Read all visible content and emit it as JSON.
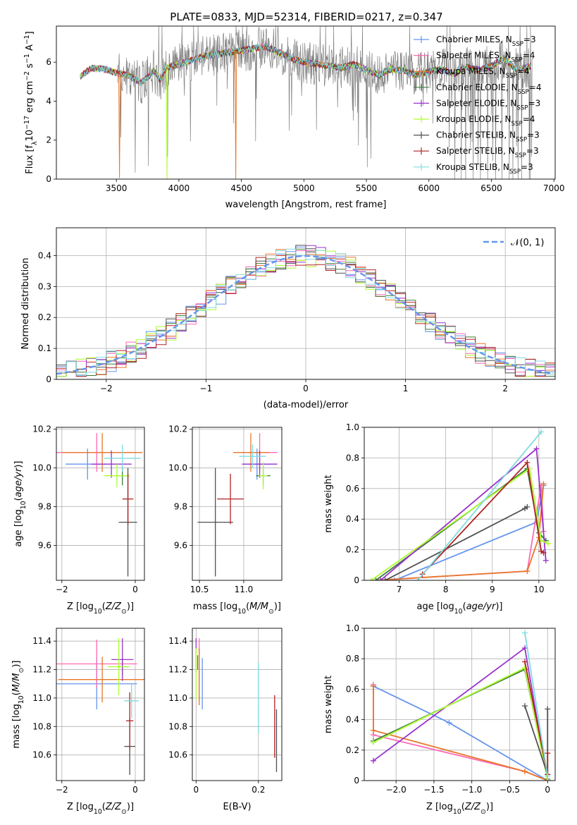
{
  "figure_title": "PLATE=0833, MJD=52314, FIBERID=0217, z=0.347",
  "colors": {
    "axes": "#000000",
    "grid": "#b0b0b0",
    "spectrum_data": "#808080",
    "normal_curve": "#6495ED"
  },
  "models": [
    {
      "name": "Chabrier MILES",
      "nssp": "3",
      "color": "#6495ED"
    },
    {
      "name": "Salpeter MILES",
      "nssp": "4",
      "color": "#FF69B4"
    },
    {
      "name": "Kroupa MILES",
      "nssp": "4",
      "color": "#E8772A"
    },
    {
      "name": "Chabrier ELODIE",
      "nssp": "4",
      "color": "#3C7A3C"
    },
    {
      "name": "Salpeter ELODIE",
      "nssp": "3",
      "color": "#9932CC"
    },
    {
      "name": "Kroupa ELODIE",
      "nssp": "4",
      "color": "#ADFF2F"
    },
    {
      "name": "Chabrier STELIB",
      "nssp": "3",
      "color": "#505050"
    },
    {
      "name": "Salpeter STELIB",
      "nssp": "3",
      "color": "#B22222"
    },
    {
      "name": "Kroupa STELIB",
      "nssp": "3",
      "color": "#7FDBE0"
    }
  ],
  "chart_data": [
    {
      "id": "spectrum",
      "type": "line",
      "xlabel": "wavelength [Angstrom, rest frame]",
      "ylabel": "Flux [f",
      "ylabel_unit": "10",
      "xlim": [
        3020,
        7010
      ],
      "ylim": [
        0,
        7.85
      ],
      "xticks": [
        3500,
        4000,
        4500,
        5000,
        5500,
        6000,
        6500,
        7000
      ],
      "yticks": [
        0,
        2,
        4,
        6
      ],
      "grid": false,
      "legend_position": "top-right",
      "x_range_model": [
        3210,
        6820
      ],
      "x_range_data": [
        3510,
        6830
      ],
      "flux_anchors": [
        [
          3210,
          5.25
        ],
        [
          3300,
          5.7
        ],
        [
          3400,
          5.65
        ],
        [
          3500,
          5.45
        ],
        [
          3600,
          5.3
        ],
        [
          3700,
          4.95
        ],
        [
          3800,
          5.55
        ],
        [
          3850,
          5.1
        ],
        [
          3900,
          5.7
        ],
        [
          4000,
          5.9
        ],
        [
          4200,
          6.3
        ],
        [
          4400,
          6.5
        ],
        [
          4500,
          6.6
        ],
        [
          4700,
          6.8
        ],
        [
          4800,
          6.5
        ],
        [
          4900,
          6.2
        ],
        [
          5000,
          6.0
        ],
        [
          5200,
          5.8
        ],
        [
          5300,
          5.7
        ],
        [
          5400,
          5.9
        ],
        [
          5500,
          5.6
        ],
        [
          5600,
          5.35
        ],
        [
          5700,
          5.65
        ],
        [
          5800,
          5.55
        ],
        [
          5900,
          5.35
        ],
        [
          6000,
          5.5
        ],
        [
          6100,
          5.65
        ],
        [
          6200,
          5.4
        ],
        [
          6300,
          5.75
        ],
        [
          6400,
          5.6
        ],
        [
          6500,
          5.8
        ],
        [
          6600,
          6.2
        ],
        [
          6700,
          5.6
        ],
        [
          6820,
          5.8
        ]
      ],
      "model_dropouts": [
        {
          "x": 3525,
          "y": 0.05,
          "color": "#E8772A"
        },
        {
          "x": 3905,
          "y": 0.0,
          "color": "#ADFF2F"
        },
        {
          "x": 4455,
          "y": 0.0,
          "color": "#E8772A"
        }
      ]
    },
    {
      "id": "residual_histogram",
      "type": "line",
      "xlabel": "(data-model)/error",
      "ylabel": "Normed distribution",
      "xlim": [
        -2.5,
        2.5
      ],
      "ylim": [
        0,
        0.49
      ],
      "xticks": [
        -2,
        -1,
        0,
        1,
        2
      ],
      "yticks": [
        0,
        0.1,
        0.2,
        0.3,
        0.4
      ],
      "grid": true,
      "bin_width": 0.1,
      "legend": "𝒩(0, 1)",
      "legend_position": "top-right"
    },
    {
      "id": "age_vs_Z",
      "type": "scatter",
      "xlabel": "Z [log",
      "ylabel": "age  [log",
      "xlim": [
        -2.15,
        0.25
      ],
      "ylim": [
        9.42,
        10.21
      ],
      "xticks": [
        -2,
        0
      ],
      "yticks": [
        9.6,
        9.8,
        10.0,
        10.2
      ],
      "points": [
        {
          "model": 0,
          "x": -1.3,
          "xerr": 0.6,
          "y": 10.02,
          "yerr": 0.08
        },
        {
          "model": 1,
          "x": -1.05,
          "xerr": 1.1,
          "y": 10.08,
          "yerr": 0.1
        },
        {
          "model": 2,
          "x": -0.9,
          "xerr": 1.1,
          "y": 10.08,
          "yerr": 0.1
        },
        {
          "model": 3,
          "x": -0.35,
          "xerr": 0.12,
          "y": 9.96,
          "yerr": 0.05
        },
        {
          "model": 4,
          "x": -0.65,
          "xerr": 0.55,
          "y": 10.02,
          "yerr": 0.07
        },
        {
          "model": 5,
          "x": -0.5,
          "xerr": 0.35,
          "y": 9.96,
          "yerr": 0.06
        },
        {
          "model": 6,
          "x": -0.2,
          "xerr": 0.25,
          "y": 9.72,
          "yerr": 0.28
        },
        {
          "model": 7,
          "x": -0.2,
          "xerr": 0.15,
          "y": 9.84,
          "yerr": 0.13
        },
        {
          "model": 8,
          "x": -0.35,
          "xerr": 0.5,
          "y": 10.05,
          "yerr": 0.07
        }
      ]
    },
    {
      "id": "age_vs_mass",
      "type": "scatter",
      "xlabel": "mass [log",
      "ylabel": "",
      "xlim": [
        10.42,
        11.43
      ],
      "ylim": [
        9.42,
        10.21
      ],
      "xticks": [
        10.5,
        11.0
      ],
      "yticks": [
        9.6,
        9.8,
        10.0,
        10.2
      ],
      "points": [
        {
          "model": 0,
          "x": 11.15,
          "xerr": 0.15,
          "y": 10.02,
          "yerr": 0.08
        },
        {
          "model": 1,
          "x": 11.18,
          "xerr": 0.2,
          "y": 10.08,
          "yerr": 0.1
        },
        {
          "model": 2,
          "x": 11.08,
          "xerr": 0.2,
          "y": 10.08,
          "yerr": 0.1
        },
        {
          "model": 3,
          "x": 11.22,
          "xerr": 0.08,
          "y": 9.96,
          "yerr": 0.05
        },
        {
          "model": 4,
          "x": 11.18,
          "xerr": 0.2,
          "y": 10.02,
          "yerr": 0.07
        },
        {
          "model": 5,
          "x": 11.22,
          "xerr": 0.05,
          "y": 9.96,
          "yerr": 0.07
        },
        {
          "model": 6,
          "x": 10.68,
          "xerr": 0.2,
          "y": 9.72,
          "yerr": 0.28
        },
        {
          "model": 7,
          "x": 10.85,
          "xerr": 0.15,
          "y": 9.84,
          "yerr": 0.13
        },
        {
          "model": 8,
          "x": 11.1,
          "xerr": 0.15,
          "y": 10.06,
          "yerr": 0.06
        }
      ]
    },
    {
      "id": "mass_weight_vs_age",
      "type": "line",
      "xlabel": "age  [log",
      "ylabel": "mass weight",
      "xlim": [
        6.25,
        10.35
      ],
      "ylim": [
        0,
        1.0
      ],
      "xticks": [
        7,
        8,
        9,
        10
      ],
      "yticks": [
        0.0,
        0.2,
        0.4,
        0.6,
        0.8,
        1.0
      ],
      "grid": true,
      "series": [
        {
          "model": 0,
          "x": [
            6.9,
            9.95,
            10.1
          ],
          "y": [
            0.0,
            0.38,
            0.62
          ]
        },
        {
          "model": 1,
          "x": [
            6.5,
            9.75,
            10.05,
            10.1
          ],
          "y": [
            0.0,
            0.06,
            0.62,
            0.32
          ]
        },
        {
          "model": 2,
          "x": [
            6.5,
            9.75,
            10.0,
            10.1
          ],
          "y": [
            0.0,
            0.06,
            0.28,
            0.63
          ]
        },
        {
          "model": 3,
          "x": [
            6.5,
            9.75,
            10.0,
            10.15
          ],
          "y": [
            0.0,
            0.73,
            0.31,
            0.26
          ]
        },
        {
          "model": 4,
          "x": [
            6.6,
            9.95,
            10.15
          ],
          "y": [
            0.0,
            0.86,
            0.13
          ]
        },
        {
          "model": 5,
          "x": [
            6.4,
            9.8,
            10.05,
            10.2
          ],
          "y": [
            0.0,
            0.73,
            0.26,
            0.24
          ]
        },
        {
          "model": 6,
          "x": [
            6.7,
            9.7,
            9.75
          ],
          "y": [
            0.0,
            0.47,
            0.48
          ]
        },
        {
          "model": 7,
          "x": [
            7.5,
            9.75,
            10.05,
            10.1
          ],
          "y": [
            0.04,
            0.77,
            0.19,
            0.18
          ]
        },
        {
          "model": 8,
          "x": [
            7.4,
            10.05
          ],
          "y": [
            0.0,
            0.97
          ]
        }
      ]
    },
    {
      "id": "mass_vs_Z",
      "type": "scatter",
      "xlabel": "Z [log",
      "ylabel": "mass [log",
      "xlim": [
        -2.15,
        0.25
      ],
      "ylim": [
        10.42,
        11.49
      ],
      "xticks": [
        -2,
        0
      ],
      "yticks": [
        10.6,
        10.8,
        11.0,
        11.2,
        11.4
      ],
      "points": [
        {
          "model": 0,
          "x": -1.05,
          "xerr": 1.1,
          "y": 11.1,
          "yerr": 0.18
        },
        {
          "model": 1,
          "x": -1.05,
          "xerr": 1.1,
          "y": 11.24,
          "yerr": 0.17
        },
        {
          "model": 2,
          "x": -0.9,
          "xerr": 1.2,
          "y": 11.13,
          "yerr": 0.16
        },
        {
          "model": 3,
          "x": -0.35,
          "xerr": 0.15,
          "y": 11.22,
          "yerr": 0.06
        },
        {
          "model": 4,
          "x": -0.35,
          "xerr": 0.3,
          "y": 11.27,
          "yerr": 0.15
        },
        {
          "model": 5,
          "x": -0.45,
          "xerr": 0.3,
          "y": 11.22,
          "yerr": 0.2
        },
        {
          "model": 6,
          "x": -0.15,
          "xerr": 0.15,
          "y": 10.66,
          "yerr": 0.2
        },
        {
          "model": 7,
          "x": -0.15,
          "xerr": 0.1,
          "y": 10.84,
          "yerr": 0.2
        },
        {
          "model": 8,
          "x": -0.1,
          "xerr": 0.2,
          "y": 10.98,
          "yerr": 0.12
        }
      ]
    },
    {
      "id": "mass_vs_EBV",
      "type": "scatter",
      "xlabel": "E(B-V)",
      "ylabel": "",
      "xlim": [
        -0.012,
        0.275
      ],
      "ylim": [
        10.42,
        11.49
      ],
      "xticks": [
        0.0,
        0.2
      ],
      "yticks": [
        10.6,
        10.8,
        11.0,
        11.2,
        11.4
      ],
      "points": [
        {
          "model": 0,
          "x": 0.02,
          "xerr": 0,
          "y": 11.1,
          "yerr": 0.18
        },
        {
          "model": 1,
          "x": 0.01,
          "xerr": 0,
          "y": 11.2,
          "yerr": 0.22
        },
        {
          "model": 2,
          "x": 0.01,
          "xerr": 0,
          "y": 11.15,
          "yerr": 0.2
        },
        {
          "model": 3,
          "x": 0.005,
          "xerr": 0,
          "y": 11.25,
          "yerr": 0.05
        },
        {
          "model": 4,
          "x": 0.0,
          "xerr": 0,
          "y": 11.3,
          "yerr": 0.12
        },
        {
          "model": 5,
          "x": 0.0,
          "xerr": 0,
          "y": 11.17,
          "yerr": 0.18
        },
        {
          "model": 6,
          "x": 0.258,
          "xerr": 0,
          "y": 10.7,
          "yerr": 0.22
        },
        {
          "model": 7,
          "x": 0.252,
          "xerr": 0,
          "y": 10.8,
          "yerr": 0.22
        },
        {
          "model": 8,
          "x": 0.2,
          "xerr": 0,
          "y": 11.0,
          "yerr": 0.25
        }
      ]
    },
    {
      "id": "mass_weight_vs_Z",
      "type": "line",
      "xlabel": "Z [log",
      "ylabel": "mass weight",
      "xlim": [
        -2.42,
        0.1
      ],
      "ylim": [
        0,
        1.0
      ],
      "xticks": [
        -2.0,
        -1.5,
        -1.0,
        -0.5,
        0.0
      ],
      "yticks": [
        0.0,
        0.2,
        0.4,
        0.6,
        0.8,
        1.0
      ],
      "grid": true,
      "series": [
        {
          "model": 0,
          "x": [
            -2.3,
            -1.3,
            -0.0
          ],
          "y": [
            0.62,
            0.38,
            0.0
          ]
        },
        {
          "model": 1,
          "x": [
            -2.3,
            -2.3,
            -0.3,
            0.0
          ],
          "y": [
            0.63,
            0.3,
            0.06,
            0.0
          ]
        },
        {
          "model": 2,
          "x": [
            -2.3,
            -2.3,
            -0.3,
            0.0
          ],
          "y": [
            0.62,
            0.33,
            0.06,
            0.0
          ]
        },
        {
          "model": 3,
          "x": [
            -2.3,
            -0.3,
            0.0
          ],
          "y": [
            0.26,
            0.73,
            0.01
          ]
        },
        {
          "model": 4,
          "x": [
            -2.3,
            -0.3,
            0.0
          ],
          "y": [
            0.13,
            0.87,
            0.0
          ]
        },
        {
          "model": 5,
          "x": [
            -2.3,
            -0.3,
            0.0
          ],
          "y": [
            0.25,
            0.74,
            0.0
          ]
        },
        {
          "model": 6,
          "x": [
            -0.3,
            0.0,
            0.0
          ],
          "y": [
            0.49,
            0.04,
            0.47
          ]
        },
        {
          "model": 7,
          "x": [
            -0.3,
            0.0,
            0.0
          ],
          "y": [
            0.78,
            0.04,
            0.18
          ]
        },
        {
          "model": 8,
          "x": [
            -0.3,
            0.0
          ],
          "y": [
            0.97,
            0.03
          ]
        }
      ]
    }
  ]
}
